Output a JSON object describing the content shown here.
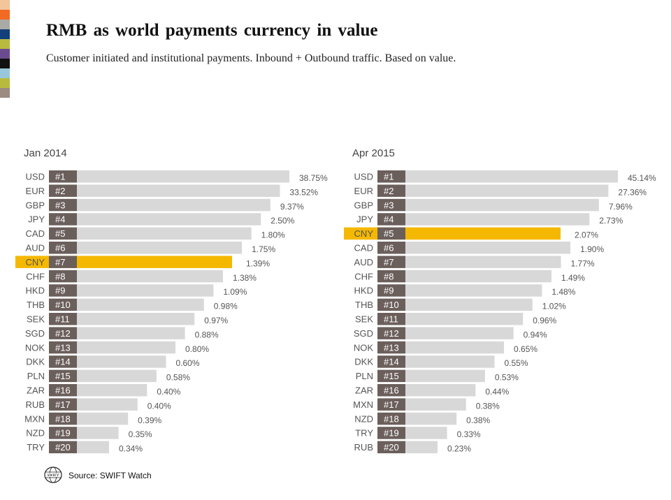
{
  "header": {
    "title": "RMB as world payments currency in value",
    "subtitle": "Customer initiated and institutional payments. Inbound + Outbound traffic. Based on value."
  },
  "colors": {
    "bar": "#d9d8d8",
    "highlight": "#f5b800",
    "rank_box": "#6b5f5c",
    "label_text": "#555555",
    "swatches": [
      "#f2c59a",
      "#f26a22",
      "#a9a9a6",
      "#133f7a",
      "#b8ba3e",
      "#6a4b8f",
      "#111111",
      "#98c7da",
      "#b8ba3e",
      "#9b8b80"
    ]
  },
  "chart_data": [
    {
      "type": "bar",
      "title": "Jan 2014",
      "orientation": "horizontal",
      "highlight_category": "CNY",
      "categories": [
        "USD",
        "EUR",
        "GBP",
        "JPY",
        "CAD",
        "AUD",
        "CNY",
        "CHF",
        "HKD",
        "THB",
        "SEK",
        "SGD",
        "NOK",
        "DKK",
        "PLN",
        "ZAR",
        "RUB",
        "MXN",
        "NZD",
        "TRY"
      ],
      "ranks": [
        "#1",
        "#2",
        "#3",
        "#4",
        "#5",
        "#6",
        "#7",
        "#8",
        "#9",
        "#10",
        "#11",
        "#12",
        "#13",
        "#14",
        "#15",
        "#16",
        "#17",
        "#18",
        "#19",
        "#20"
      ],
      "values": [
        38.75,
        33.52,
        9.37,
        2.5,
        1.8,
        1.75,
        1.39,
        1.38,
        1.09,
        0.98,
        0.97,
        0.88,
        0.8,
        0.6,
        0.58,
        0.4,
        0.4,
        0.39,
        0.35,
        0.34
      ],
      "value_labels": [
        "38.75%",
        "33.52%",
        "9.37%",
        "2.50%",
        "1.80%",
        "1.75%",
        "1.39%",
        "1.38%",
        "1.09%",
        "0.98%",
        "0.97%",
        "0.88%",
        "0.80%",
        "0.60%",
        "0.58%",
        "0.40%",
        "0.40%",
        "0.39%",
        "0.35%",
        "0.34%"
      ]
    },
    {
      "type": "bar",
      "title": "Apr 2015",
      "orientation": "horizontal",
      "highlight_category": "CNY",
      "categories": [
        "USD",
        "EUR",
        "GBP",
        "JPY",
        "CNY",
        "CAD",
        "AUD",
        "CHF",
        "HKD",
        "THB",
        "SEK",
        "SGD",
        "NOK",
        "DKK",
        "PLN",
        "ZAR",
        "MXN",
        "NZD",
        "TRY",
        "RUB"
      ],
      "ranks": [
        "#1",
        "#2",
        "#3",
        "#4",
        "#5",
        "#6",
        "#7",
        "#8",
        "#9",
        "#10",
        "#11",
        "#12",
        "#13",
        "#14",
        "#15",
        "#16",
        "#17",
        "#18",
        "#19",
        "#20"
      ],
      "values": [
        45.14,
        27.36,
        7.96,
        2.73,
        2.07,
        1.9,
        1.77,
        1.49,
        1.48,
        1.02,
        0.96,
        0.94,
        0.65,
        0.55,
        0.53,
        0.44,
        0.38,
        0.38,
        0.33,
        0.23
      ],
      "value_labels": [
        "45.14%",
        "27.36%",
        "7.96%",
        "2.73%",
        "2.07%",
        "1.90%",
        "1.77%",
        "1.49%",
        "1.48%",
        "1.02%",
        "0.96%",
        "0.94%",
        "0.65%",
        "0.55%",
        "0.53%",
        "0.44%",
        "0.38%",
        "0.38%",
        "0.33%",
        "0.23%"
      ]
    }
  ],
  "footer": {
    "logo_text": "SWIFT",
    "source": "Source: SWIFT Watch"
  }
}
